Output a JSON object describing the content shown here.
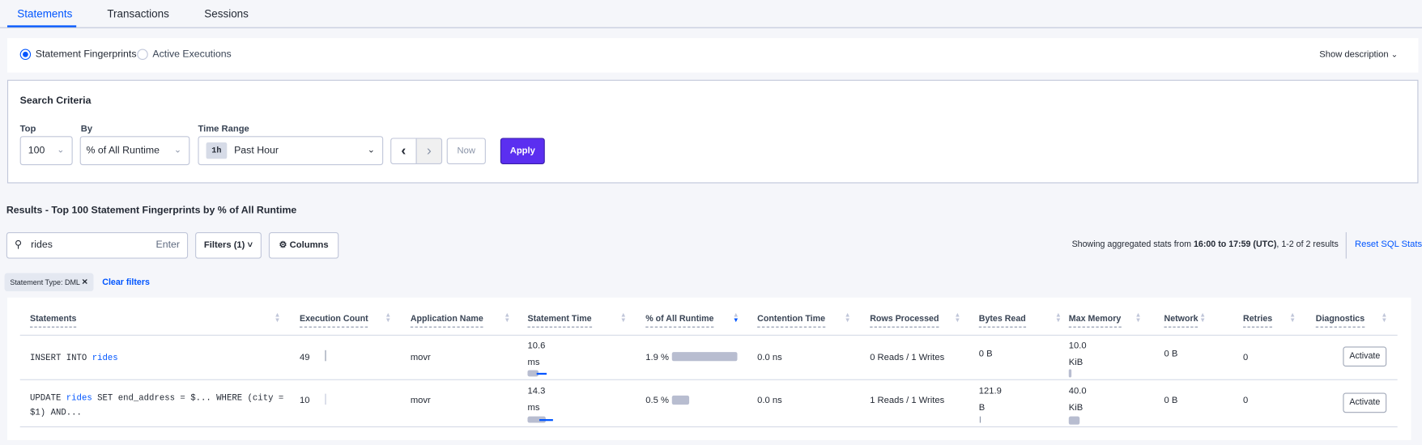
{
  "tabs": [
    {
      "label": "Statements",
      "active": true
    },
    {
      "label": "Transactions"
    },
    {
      "label": "Sessions"
    }
  ],
  "view_toggle": {
    "options": [
      "Statement Fingerprints",
      "Active Executions"
    ],
    "selected": "Statement Fingerprints",
    "show_description": "Show description"
  },
  "search_criteria": {
    "title": "Search Criteria",
    "top_label": "Top",
    "top_value": "100",
    "by_label": "By",
    "by_value": "% of All Runtime",
    "time_range_label": "Time Range",
    "time_badge": "1h",
    "time_value": "Past Hour",
    "now_label": "Now",
    "apply_label": "Apply"
  },
  "results": {
    "title": "Results - Top 100 Statement Fingerprints by % of All Runtime",
    "search_value": "rides",
    "search_hint": "Enter",
    "filters_label": "Filters (1)",
    "columns_label": "Columns",
    "summary_prefix": "Showing aggregated stats from ",
    "summary_range": "16:00 to 17:59 (UTC)",
    "summary_suffix": ", 1-2 of 2 results",
    "reset_label": "Reset SQL Stats",
    "filter_chip": "Statement Type: DML",
    "clear_filters": "Clear filters"
  },
  "table": {
    "columns": [
      "Statements",
      "Execution Count",
      "Application Name",
      "Statement Time",
      "% of All Runtime",
      "Contention Time",
      "Rows Processed",
      "Bytes Read",
      "Max Memory",
      "Network",
      "Retries",
      "Diagnostics"
    ],
    "sorted_column": "% of All Runtime",
    "sort_direction": "descending",
    "rows": [
      {
        "stmt_pre": "INSERT INTO ",
        "stmt_kw": "rides",
        "stmt_post": "",
        "stmt_line2": "",
        "exec_count": "49",
        "app": "movr",
        "stmt_time_val": "10.6",
        "stmt_time_unit": "ms",
        "runtime": "1.9 %",
        "runtime_pct": 1.9,
        "contention": "0.0 ns",
        "rows": "0 Reads / 1 Writes",
        "bytes_val": "0 B",
        "bytes_unit": "",
        "mem_val": "10.0",
        "mem_unit": "KiB",
        "network": "0 B",
        "retries": "0",
        "diag": "Activate"
      },
      {
        "stmt_pre": "UPDATE ",
        "stmt_kw": "rides",
        "stmt_post": " SET end_address = $... WHERE (city =",
        "stmt_line2": "$1) AND...",
        "exec_count": "10",
        "app": "movr",
        "stmt_time_val": "14.3",
        "stmt_time_unit": "ms",
        "runtime": "0.5 %",
        "runtime_pct": 0.5,
        "contention": "0.0 ns",
        "rows": "1 Reads / 1 Writes",
        "bytes_val": "121.9",
        "bytes_unit": "B",
        "mem_val": "40.0",
        "mem_unit": "KiB",
        "network": "0 B",
        "retries": "0",
        "diag": "Activate"
      }
    ]
  },
  "colors": {
    "accent": "#0055ff",
    "apply": "#5b2ff0"
  }
}
